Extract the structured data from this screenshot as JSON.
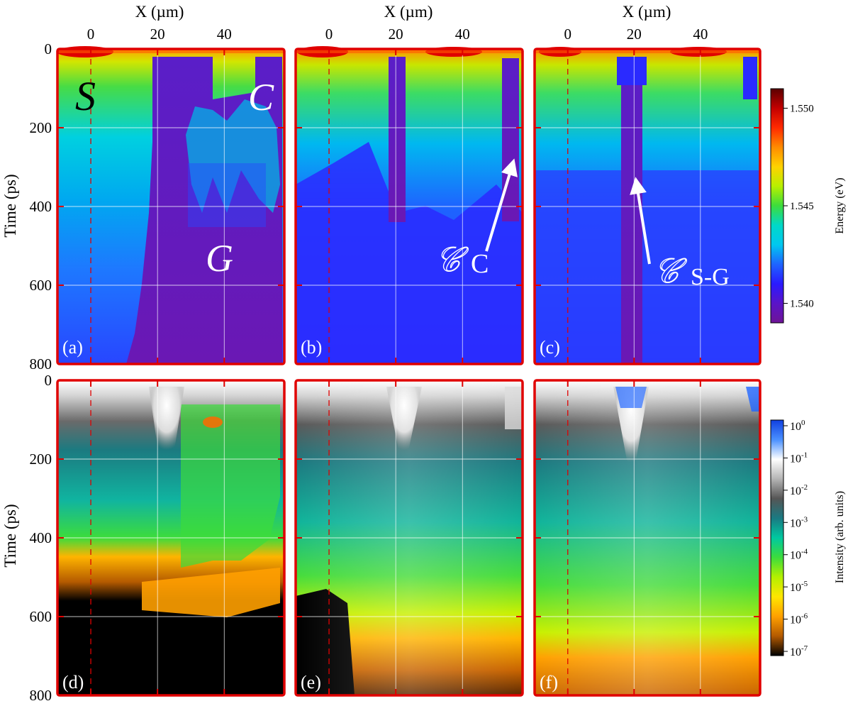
{
  "figure": {
    "x_axis_title": "X (µm)",
    "y_axis_title": "Time (ps)",
    "energy_colorbar_label": "Energy (eV)",
    "intensity_colorbar_label": "Intensity (arb. units)"
  },
  "chart_data": [
    {
      "type": "heatmap",
      "panel": "(a)",
      "xlabel": "X (µm)",
      "ylabel": "Time (ps)",
      "xlim": [
        -10,
        58
      ],
      "ylim": [
        800,
        0
      ],
      "xticks": [
        0,
        20,
        40
      ],
      "yticks": [
        0,
        200,
        400,
        600,
        800
      ],
      "colorbar": "energy",
      "annotations": [
        "S",
        "C",
        "G"
      ]
    },
    {
      "type": "heatmap",
      "panel": "(b)",
      "xlabel": "X (µm)",
      "xlim": [
        -10,
        58
      ],
      "ylim": [
        800,
        0
      ],
      "xticks": [
        0,
        20,
        40
      ],
      "colorbar": "energy",
      "annotations": [
        "𝒞",
        "C"
      ]
    },
    {
      "type": "heatmap",
      "panel": "(c)",
      "xlabel": "X (µm)",
      "xlim": [
        -10,
        58
      ],
      "ylim": [
        800,
        0
      ],
      "xticks": [
        0,
        20,
        40
      ],
      "colorbar": "energy",
      "annotations": [
        "𝒞",
        "S-G"
      ]
    },
    {
      "type": "heatmap",
      "panel": "(d)",
      "ylabel": "Time (ps)",
      "xlim": [
        -10,
        58
      ],
      "ylim": [
        800,
        0
      ],
      "yticks": [
        0,
        200,
        400,
        600,
        800
      ],
      "colorbar": "intensity"
    },
    {
      "type": "heatmap",
      "panel": "(e)",
      "xlim": [
        -10,
        58
      ],
      "ylim": [
        800,
        0
      ],
      "colorbar": "intensity"
    },
    {
      "type": "heatmap",
      "panel": "(f)",
      "xlim": [
        -10,
        58
      ],
      "ylim": [
        800,
        0
      ],
      "colorbar": "intensity"
    },
    {
      "type": "colorbar",
      "name": "energy",
      "label": "Energy (eV)",
      "range": [
        1.539,
        1.551
      ],
      "ticks": [
        "1.550",
        "1.545",
        "1.540"
      ],
      "tick_values": [
        1.55,
        1.545,
        1.54
      ],
      "colors": [
        "#5a0000",
        "#c40000",
        "#ff2a00",
        "#ff8c00",
        "#ffd200",
        "#b8f000",
        "#3cdc3c",
        "#00d8c8",
        "#00c8f0",
        "#1e64ff",
        "#2a1aff",
        "#5a14c8",
        "#6e1496"
      ]
    },
    {
      "type": "colorbar",
      "name": "intensity",
      "label": "Intensity (arb. units)",
      "scale": "log",
      "ticks": [
        {
          "base": "10",
          "exp": "0"
        },
        {
          "base": "10",
          "exp": "-1"
        },
        {
          "base": "10",
          "exp": "-2"
        },
        {
          "base": "10",
          "exp": "-3"
        },
        {
          "base": "10",
          "exp": "-4"
        },
        {
          "base": "10",
          "exp": "-5"
        },
        {
          "base": "10",
          "exp": "-6"
        },
        {
          "base": "10",
          "exp": "-7"
        }
      ],
      "tick_values": [
        0,
        -1,
        -2,
        -3,
        -4,
        -5,
        -6,
        -7
      ],
      "colors": [
        "#1040e0",
        "#4a90ff",
        "#ffffff",
        "#b4b4b4",
        "#555555",
        "#1a7a82",
        "#00c8a0",
        "#3cdc3c",
        "#b4f000",
        "#ffe600",
        "#ffa000",
        "#b45a00",
        "#000000"
      ]
    }
  ]
}
